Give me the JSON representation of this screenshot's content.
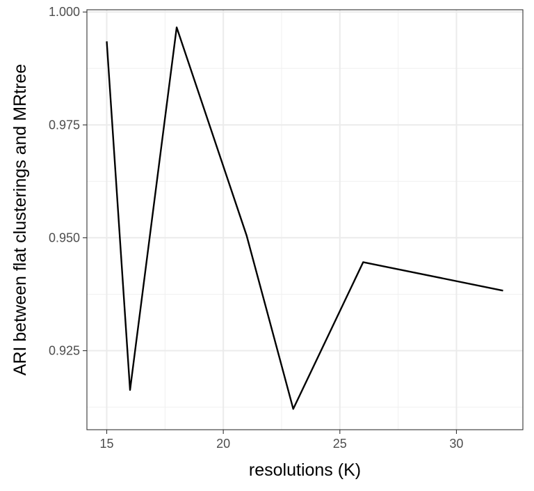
{
  "chart_data": {
    "type": "line",
    "title": "",
    "xlabel": "resolutions (K)",
    "ylabel": "ARI between flat clusterings and MRtree",
    "x_ticks": [
      15,
      20,
      25,
      30
    ],
    "y_ticks": [
      0.925,
      0.95,
      0.975,
      1.0
    ],
    "x_tick_labels": [
      "15",
      "20",
      "25",
      "30"
    ],
    "y_tick_labels": [
      "0.925",
      "0.950",
      "0.975",
      "1.000"
    ],
    "xlim": [
      14.15,
      32.85
    ],
    "ylim": [
      0.9075,
      1.0005
    ],
    "grid": true,
    "theme": "bw",
    "line_color": "#000000",
    "series": [
      {
        "x": [
          15,
          16,
          18,
          21,
          23,
          26,
          32
        ],
        "y": [
          0.9935,
          0.9163,
          0.9966,
          0.9505,
          0.9121,
          0.9446,
          0.9383
        ]
      }
    ]
  }
}
